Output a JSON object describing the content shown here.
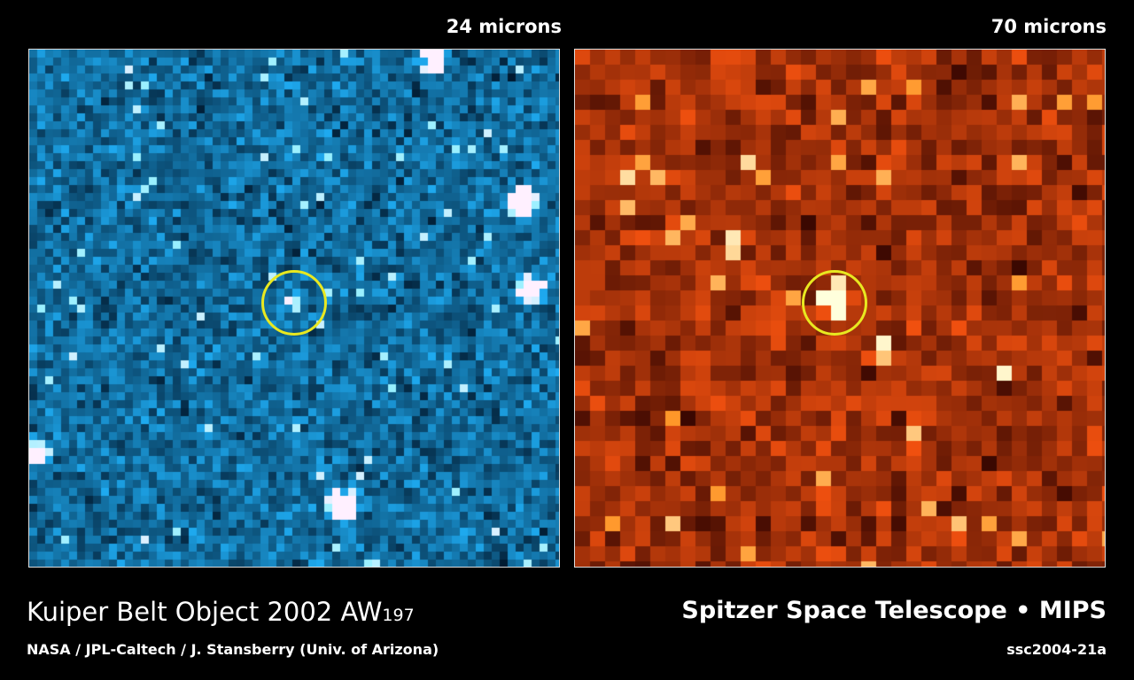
{
  "panels": [
    {
      "wavelength_label": "24 microns",
      "palette": "blue"
    },
    {
      "wavelength_label": "70 microns",
      "palette": "red"
    }
  ],
  "caption": {
    "title": "Kuiper Belt Object 2002 AW",
    "title_subscript": "197",
    "credit": "NASA / JPL-Caltech / J. Stansberry (Univ. of Arizona)",
    "instrument": "Spitzer Space Telescope • MIPS",
    "image_id": "ssc2004-21a"
  },
  "colors": {
    "marker": "#e8e820",
    "blue_accent": "#1a8fe0",
    "red_accent": "#c03010"
  }
}
